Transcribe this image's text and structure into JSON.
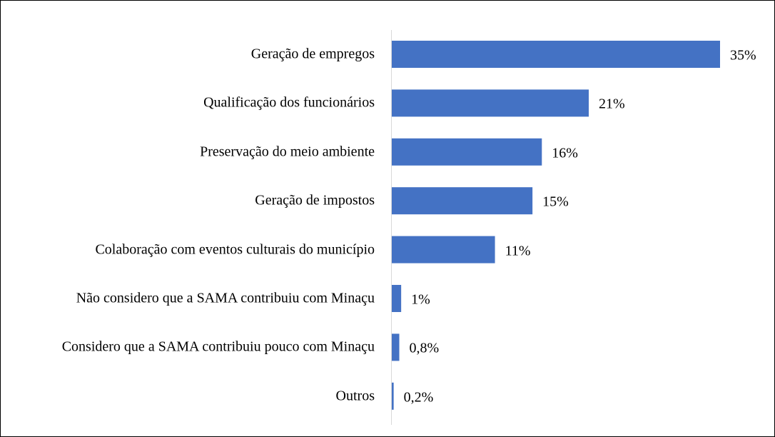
{
  "chart_data": {
    "type": "bar",
    "orientation": "horizontal",
    "categories": [
      "Geração de empregos",
      "Qualificação dos funcionários",
      "Preservação do meio ambiente",
      "Geração de impostos",
      "Colaboração com eventos culturais do município",
      "Não considero que a SAMA contribuiu com Minaçu",
      "Considero que a SAMA contribuiu pouco com Minaçu",
      "Outros"
    ],
    "values": [
      35,
      21,
      16,
      15,
      11,
      1,
      0.8,
      0.2
    ],
    "value_labels": [
      "35%",
      "21%",
      "16%",
      "15%",
      "11%",
      "1%",
      "0,8%",
      "0,2%"
    ],
    "color": "#4472c4"
  }
}
